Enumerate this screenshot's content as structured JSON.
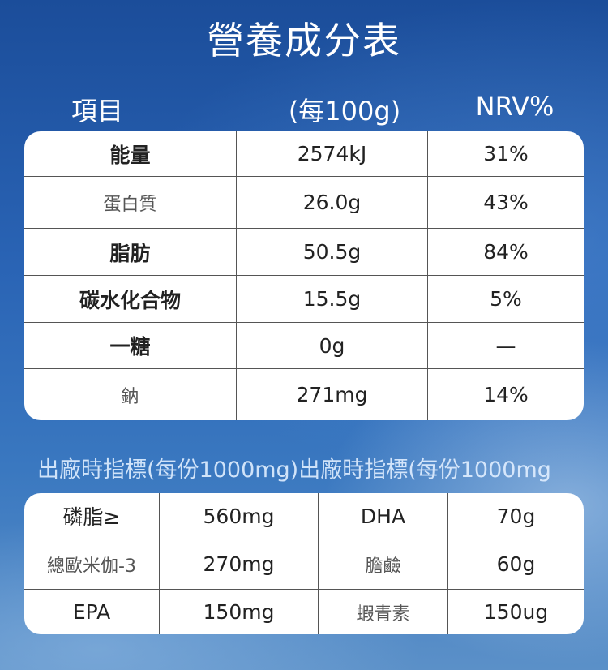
{
  "header": {
    "title": "營養成分表"
  },
  "table1": {
    "columns": [
      "項目",
      "(每100g)",
      "NRV%"
    ],
    "rows": [
      [
        "能量",
        "2574kJ",
        "31%"
      ],
      [
        "蛋白質",
        "26.0g",
        "43%"
      ],
      [
        "脂肪",
        "50.5g",
        "84%"
      ],
      [
        "碳水化合物",
        "15.5g",
        "5%"
      ],
      [
        "一糖",
        "0g",
        "—"
      ],
      [
        "鈉",
        "271mg",
        "14%"
      ]
    ]
  },
  "subtitle": "出廠時指標(每份1000mg)出廠時指標(每份1000mg",
  "table2": {
    "rows": [
      [
        "磷脂≥",
        "560mg",
        "DHA",
        "70g"
      ],
      [
        "總歐米伽-3",
        "270mg",
        "膽鹼",
        "60g"
      ],
      [
        "EPA",
        "150mg",
        "蝦青素",
        "150ug"
      ]
    ]
  }
}
